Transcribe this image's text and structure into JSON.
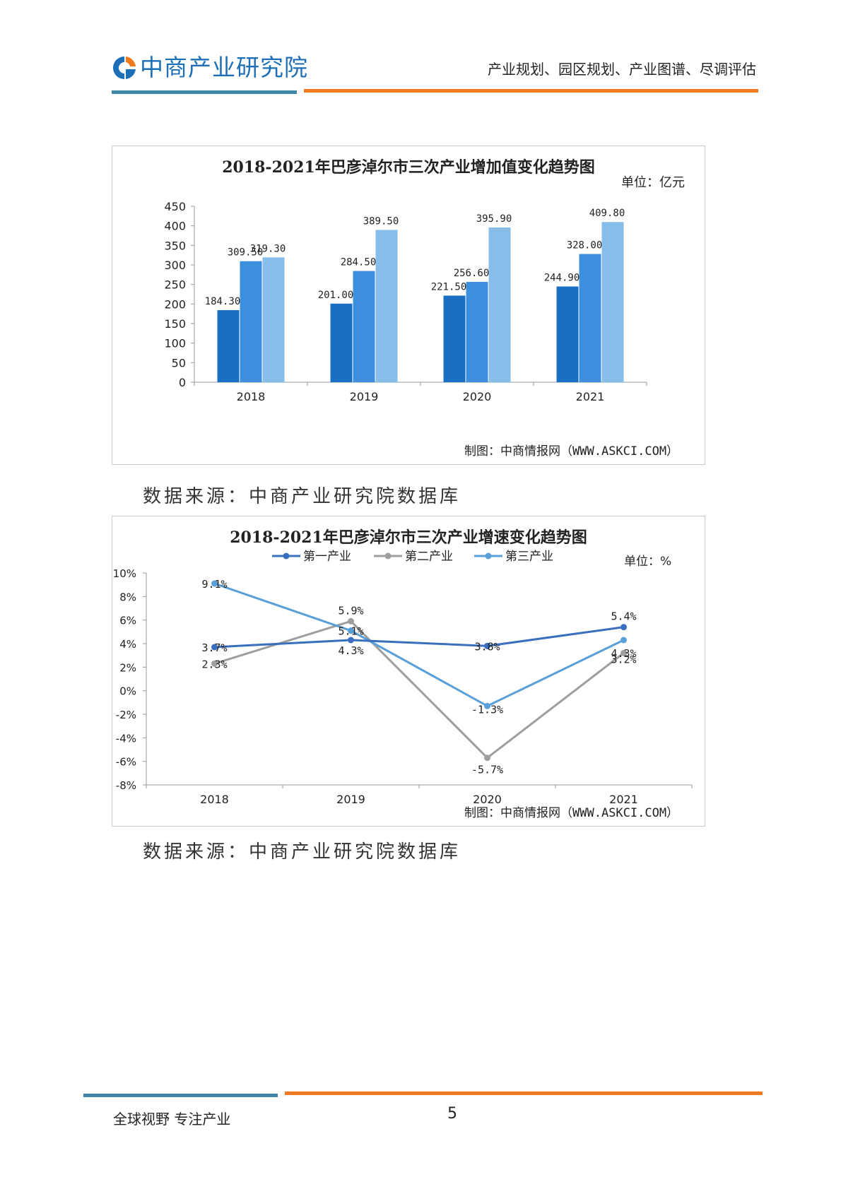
{
  "header": {
    "logo_text": "中商产业研究院",
    "tagline": "产业规划、园区规划、产业图谱、尽调评估"
  },
  "colors": {
    "blue_rule": "#3f86a8",
    "orange_rule": "#f07a1d",
    "primary_series": "#1a6fc3",
    "secondary_series": "#3b8fdd",
    "tertiary_series": "#86bde9",
    "line_primary": "#3a6fc0",
    "line_secondary": "#9e9e9e",
    "line_tertiary": "#5aa0d8"
  },
  "chart1": {
    "title": "2018-2021年巴彦淖尔市三次产业增加值变化趋势图",
    "unit": "单位：亿元",
    "credit": "制图：中商情报网（WWW.ASKCI.COM）"
  },
  "chart2": {
    "title": "2018-2021年巴彦淖尔市三次产业增速变化趋势图",
    "unit": "单位：%",
    "credit": "制图：中商情报网（WWW.ASKCI.COM）"
  },
  "chart_data": [
    {
      "type": "bar",
      "categories": [
        "2018",
        "2019",
        "2020",
        "2021"
      ],
      "series": [
        {
          "values": [
            184.3,
            201.0,
            221.5,
            244.9
          ],
          "labels": [
            "184.30",
            "201.00",
            "221.50",
            "244.90"
          ],
          "color": "#1a6fc3"
        },
        {
          "values": [
            309.5,
            284.5,
            256.6,
            328.0
          ],
          "labels": [
            "309.50",
            "284.50",
            "256.60",
            "328.00"
          ],
          "color": "#3b8fdd"
        },
        {
          "values": [
            319.3,
            389.5,
            395.9,
            409.8
          ],
          "labels": [
            "319.30",
            "389.50",
            "395.90",
            "409.80"
          ],
          "color": "#86bde9"
        }
      ],
      "yticks": [
        "0",
        "50",
        "100",
        "150",
        "200",
        "250",
        "300",
        "350",
        "400",
        "450"
      ],
      "ylim": [
        0,
        450
      ],
      "grid": false
    },
    {
      "type": "line",
      "categories": [
        "2018",
        "2019",
        "2020",
        "2021"
      ],
      "series": [
        {
          "name": "第一产业",
          "values": [
            3.7,
            4.3,
            3.8,
            5.4
          ],
          "labels": [
            "3.7%",
            "4.3%",
            "3.8%",
            "5.4%"
          ],
          "color": "#3a6fc0"
        },
        {
          "name": "第二产业",
          "values": [
            2.3,
            5.9,
            -5.7,
            3.2
          ],
          "labels": [
            "2.3%",
            "5.9%",
            "-5.7%",
            "3.2%"
          ],
          "color": "#9e9e9e"
        },
        {
          "name": "第三产业",
          "values": [
            9.1,
            5.1,
            -1.3,
            4.3
          ],
          "labels": [
            "9.1%",
            "5.1%",
            "-1.3%",
            "4.3%"
          ],
          "color": "#5aa0d8"
        }
      ],
      "yticks": [
        "10%",
        "8%",
        "6%",
        "4%",
        "2%",
        "0%",
        "-2%",
        "-4%",
        "-6%",
        "-8%"
      ],
      "ylim": [
        -8,
        10
      ],
      "legend": "top",
      "grid": false
    }
  ],
  "source_note_1": "数据来源：中商产业研究院数据库",
  "source_note_2": "数据来源：中商产业研究院数据库",
  "footer": {
    "slogan": "全球视野  专注产业",
    "page_number": "5"
  }
}
